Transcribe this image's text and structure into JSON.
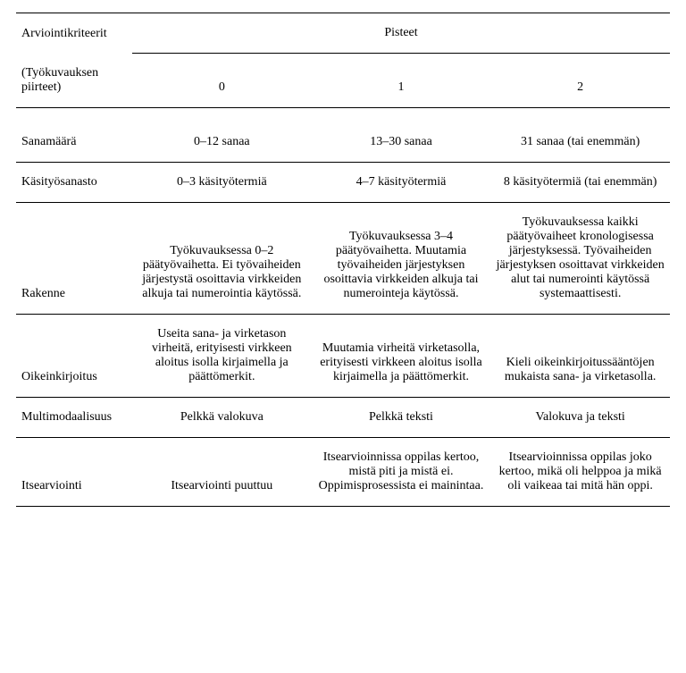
{
  "table": {
    "header": {
      "criteria_label": "Arviointikriteerit",
      "points_label": "Pisteet",
      "sub_label": "(Työkuvauksen piirteet)",
      "score0": "0",
      "score1": "1",
      "score2": "2"
    },
    "rows": {
      "sanamaara": {
        "label": "Sanamäärä",
        "c0": "0–12 sanaa",
        "c1": "13–30 sanaa",
        "c2": "31 sanaa (tai enemmän)"
      },
      "kasityosanasto": {
        "label": "Käsityösanasto",
        "c0": "0–3 käsityötermiä",
        "c1": "4–7 käsityötermiä",
        "c2": "8 käsityötermiä (tai enemmän)"
      },
      "rakenne": {
        "label": "Rakenne",
        "c0": "Työkuvauksessa 0–2 päätyövaihetta. Ei työvaiheiden järjestystä osoittavia virkkeiden alkuja tai numerointia käytössä.",
        "c1": "Työkuvauksessa 3–4 päätyövaihetta. Muutamia työvaiheiden järjestyksen osoittavia virkkeiden alkuja tai numerointeja käytössä.",
        "c2": "Työkuvauksessa kaikki päätyövaiheet kronologisessa järjestyksessä. Työvaiheiden järjestyksen osoittavat virkkeiden alut tai numerointi käytössä systemaattisesti."
      },
      "oikeinkirjoitus": {
        "label": "Oikeinkirjoitus",
        "c0": "Useita sana- ja virketason virheitä, erityisesti virkkeen aloitus isolla kirjaimella ja päättömerkit.",
        "c1": "Muutamia virheitä virketasolla, erityisesti virkkeen aloitus isolla kirjaimella ja päättömerkit.",
        "c2": "Kieli oikeinkirjoitussääntöjen mukaista sana- ja virketasolla."
      },
      "multimodaalisuus": {
        "label": "Multimodaalisuus",
        "c0": "Pelkkä valokuva",
        "c1": "Pelkkä teksti",
        "c2": "Valokuva ja teksti"
      },
      "itsearviointi": {
        "label": "Itsearviointi",
        "c0": "Itsearviointi puuttuu",
        "c1": "Itsearvioinnissa oppilas kertoo, mistä piti ja mistä ei. Oppimisprosessista ei mainintaa.",
        "c2": "Itsearvioinnissa oppilas joko kertoo, mikä oli helppoa ja mikä oli vaikeaa tai mitä hän oppi."
      }
    }
  },
  "style": {
    "font_family": "Times New Roman",
    "font_size_pt": 11,
    "rule_color": "#000000",
    "background": "#ffffff",
    "text_color": "#000000"
  }
}
